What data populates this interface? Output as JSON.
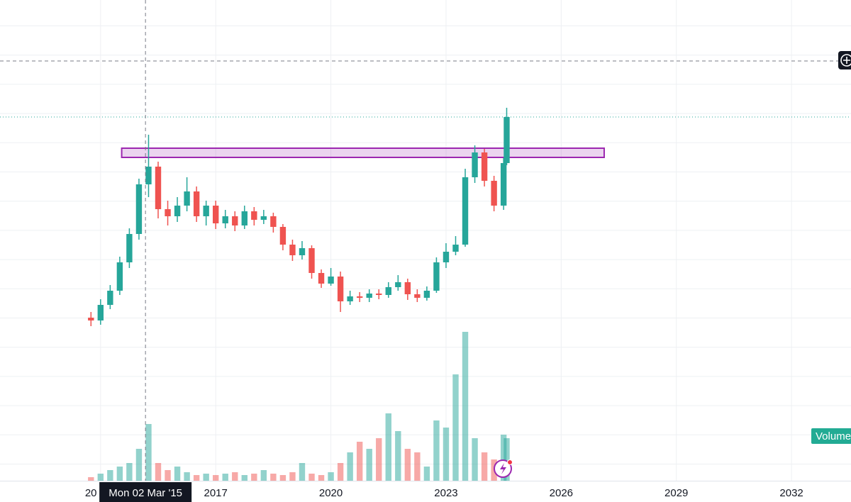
{
  "chart_data": {
    "type": "candlestick",
    "x": [
      2013.75,
      2014.0,
      2014.25,
      2014.5,
      2014.75,
      2015.0,
      2015.25,
      2015.5,
      2015.75,
      2016.0,
      2016.25,
      2016.5,
      2016.75,
      2017.0,
      2017.25,
      2017.5,
      2017.75,
      2018.0,
      2018.25,
      2018.5,
      2018.75,
      2019.0,
      2019.25,
      2019.5,
      2019.75,
      2020.0,
      2020.25,
      2020.5,
      2020.75,
      2021.0,
      2021.25,
      2021.5,
      2021.75,
      2022.0,
      2022.25,
      2022.5,
      2022.75,
      2023.0,
      2023.25,
      2023.5,
      2023.75,
      2024.0,
      2024.25,
      2024.5,
      2024.58
    ],
    "open": [
      230,
      226,
      248,
      268,
      308,
      348,
      418,
      443,
      383,
      373,
      388,
      408,
      373,
      388,
      363,
      373,
      360,
      380,
      368,
      373,
      358,
      333,
      318,
      328,
      293,
      278,
      288,
      253,
      260,
      258,
      264,
      262,
      273,
      280,
      263,
      258,
      268,
      308,
      323,
      333,
      428,
      463,
      423,
      388,
      448
    ],
    "high": [
      238,
      256,
      276,
      316,
      356,
      426,
      488,
      450,
      395,
      400,
      428,
      415,
      395,
      395,
      382,
      380,
      388,
      386,
      382,
      378,
      362,
      340,
      338,
      332,
      298,
      300,
      295,
      268,
      266,
      270,
      270,
      280,
      290,
      285,
      270,
      274,
      315,
      335,
      345,
      440,
      473,
      468,
      430,
      455,
      526
    ],
    "low": [
      218,
      220,
      242,
      262,
      300,
      340,
      400,
      370,
      360,
      365,
      380,
      365,
      360,
      355,
      356,
      352,
      355,
      360,
      362,
      350,
      325,
      310,
      312,
      285,
      272,
      275,
      238,
      248,
      252,
      252,
      256,
      258,
      268,
      255,
      252,
      254,
      265,
      300,
      318,
      330,
      420,
      415,
      380,
      382,
      445
    ],
    "close": [
      226,
      248,
      268,
      308,
      348,
      418,
      443,
      383,
      373,
      388,
      408,
      373,
      388,
      363,
      373,
      360,
      380,
      368,
      373,
      358,
      333,
      318,
      328,
      293,
      278,
      288,
      253,
      260,
      258,
      264,
      262,
      273,
      280,
      263,
      258,
      268,
      308,
      323,
      333,
      428,
      463,
      423,
      388,
      448,
      513
    ],
    "volume": [
      5,
      10,
      15,
      20,
      25,
      45,
      80,
      25,
      15,
      20,
      12,
      8,
      10,
      8,
      10,
      12,
      8,
      10,
      15,
      10,
      8,
      12,
      25,
      10,
      8,
      12,
      25,
      40,
      55,
      45,
      60,
      95,
      70,
      45,
      40,
      20,
      85,
      75,
      150,
      210,
      60,
      40,
      30,
      65,
      60
    ],
    "up_color": "#26a69a",
    "down_color": "#ef5350",
    "xlim": [
      2011.38,
      2033.55
    ],
    "ylim": [
      0,
      678
    ],
    "volume_ylim": [
      0,
      678
    ],
    "xticks": [
      {
        "value": 2014,
        "label": "20"
      },
      2017,
      2020,
      2023,
      2026,
      2029,
      2032
    ],
    "crosshair": {
      "x": 2015.17,
      "y": 592,
      "label": "Mon 02 Mar '15"
    },
    "zone": {
      "x": [
        2014.55,
        2027.12
      ],
      "y": [
        456,
        469
      ],
      "color": "#9c27b0"
    },
    "volume_label": "Volume",
    "grid": true
  }
}
